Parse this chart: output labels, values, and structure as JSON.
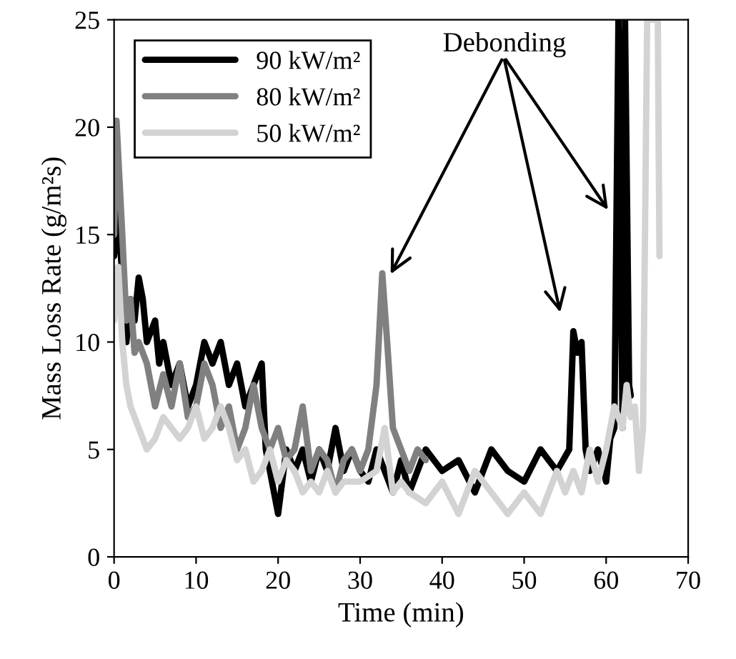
{
  "chart_data": {
    "type": "line",
    "xlabel": "Time (min)",
    "ylabel": "Mass Loss Rate (g/m²s)",
    "xlim": [
      0,
      70
    ],
    "ylim": [
      0,
      25
    ],
    "xticks": [
      0,
      10,
      20,
      30,
      40,
      50,
      60,
      70
    ],
    "yticks": [
      0,
      5,
      10,
      15,
      20,
      25
    ],
    "grid": false,
    "legend": "top left",
    "marker": "none",
    "line_style": "solid",
    "annotations": [
      "Debonding"
    ],
    "series": [
      {
        "name": "90 kW/m²",
        "color": "#000000",
        "x": [
          0,
          0.5,
          1,
          1.5,
          2,
          2.5,
          3,
          3.5,
          4,
          5,
          5.5,
          6,
          7,
          8,
          9,
          10,
          11,
          12,
          13,
          14,
          15,
          16,
          17,
          18,
          18.5,
          19,
          20,
          21,
          22,
          23,
          24,
          25,
          26,
          27,
          28,
          29,
          30,
          31,
          32,
          33,
          34,
          35,
          36,
          37,
          38,
          40,
          42,
          44,
          46,
          48,
          50,
          52,
          54,
          55.5,
          56,
          56.5,
          57,
          57.5,
          58,
          59,
          60,
          60.5,
          61,
          61.5,
          62,
          62.3,
          62.8,
          63
        ],
        "values": [
          14,
          16,
          13,
          10,
          12,
          11,
          13,
          12,
          10,
          11,
          9,
          10,
          8,
          9,
          7,
          8,
          10,
          9,
          10,
          8,
          9,
          7,
          8,
          9,
          5,
          4,
          2,
          5,
          4,
          5,
          3.5,
          5,
          4,
          6,
          4,
          5,
          4,
          3.5,
          5,
          4,
          3,
          4.5,
          3,
          4,
          5,
          4,
          4.5,
          3,
          5,
          4,
          3.5,
          5,
          4,
          5,
          10.5,
          9.5,
          10,
          5,
          4,
          5,
          3.5,
          5.5,
          6,
          25,
          6,
          25,
          8,
          7.5
        ]
      },
      {
        "name": "80 kW/m²",
        "color": "#808080",
        "x": [
          0,
          0.3,
          0.6,
          1,
          1.5,
          2,
          2.5,
          3,
          4,
          5,
          6,
          7,
          8,
          9,
          10,
          11,
          12,
          13,
          14,
          15,
          16,
          17,
          18,
          19,
          20,
          21,
          22,
          23,
          24,
          25,
          26,
          27,
          28,
          29,
          30,
          31,
          32,
          32.7,
          33.3,
          34,
          35,
          36,
          37,
          38
        ],
        "values": [
          15,
          20.3,
          18,
          15,
          11,
          12,
          9.5,
          10,
          9,
          7,
          8.5,
          7,
          9,
          6.5,
          7,
          9,
          8,
          6,
          7,
          5,
          6,
          8,
          6,
          5,
          6,
          4.5,
          5,
          7,
          4,
          5,
          4.5,
          3,
          4.5,
          5,
          4,
          5,
          8,
          13.2,
          10,
          6,
          5,
          4,
          5,
          4.5
        ]
      },
      {
        "name": "50 kW/m²",
        "color": "#d3d3d3",
        "x": [
          0,
          0.5,
          1,
          1.5,
          2,
          3,
          4,
          5,
          6,
          7,
          8,
          9,
          10,
          11,
          12,
          13,
          14,
          15,
          16,
          17,
          18,
          19,
          20,
          21,
          22,
          23,
          24,
          25,
          26,
          27,
          28,
          30,
          32,
          33,
          34,
          35,
          36,
          38,
          40,
          42,
          44,
          46,
          48,
          50,
          52,
          54,
          55,
          56,
          57,
          58,
          59,
          60,
          61,
          62,
          62.5,
          63,
          63.5,
          64,
          64.5,
          65,
          65.3,
          65.6,
          66,
          66.3,
          66.5
        ],
        "values": [
          11,
          13.5,
          10,
          8,
          7,
          6,
          5,
          5.5,
          6.5,
          6,
          5.5,
          6,
          7,
          5.5,
          6,
          7,
          6,
          4.5,
          5,
          3.5,
          4,
          5,
          3.5,
          4.5,
          4,
          3,
          3.5,
          3,
          4,
          3,
          3.5,
          3.5,
          4,
          6,
          3,
          3.5,
          3,
          2.5,
          3.5,
          2,
          4,
          3,
          2,
          3,
          2,
          4,
          3,
          4,
          3,
          5,
          3.5,
          5,
          7,
          6,
          8,
          6.5,
          7,
          4,
          6,
          25,
          25,
          25,
          25,
          25,
          14
        ]
      }
    ]
  }
}
